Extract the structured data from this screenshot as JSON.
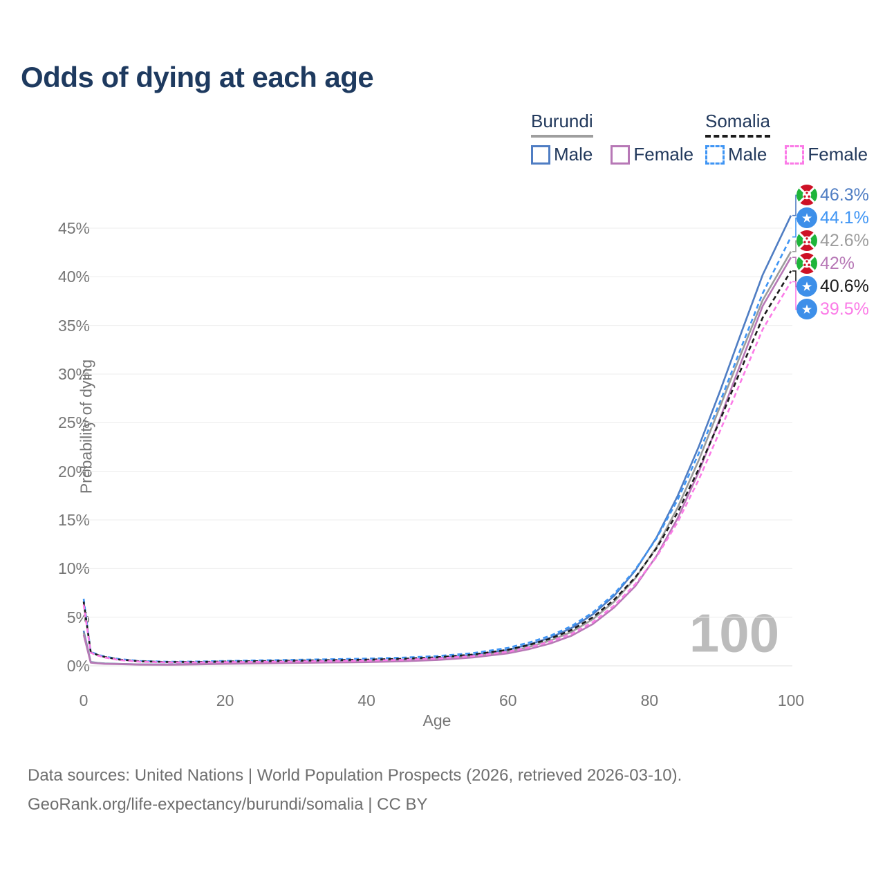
{
  "title": "Odds of dying at each age",
  "legend": {
    "groups": [
      {
        "label": "Burundi",
        "line_color": "#9e9e9e",
        "line_style": "solid",
        "items": [
          {
            "label": "Male",
            "color": "#4f7dc3",
            "style": "solid"
          },
          {
            "label": "Female",
            "color": "#b778b6",
            "style": "solid"
          }
        ]
      },
      {
        "label": "Somalia",
        "line_color": "#1c1c1c",
        "line_style": "dashed",
        "items": [
          {
            "label": "Male",
            "color": "#3f95f4",
            "style": "dashed"
          },
          {
            "label": "Female",
            "color": "#fb7be7",
            "style": "dashed"
          }
        ]
      }
    ]
  },
  "chart_data": {
    "type": "line",
    "title": "Odds of dying at each age",
    "xlabel": "Age",
    "ylabel": "Probability of dying",
    "xlim": [
      0,
      100
    ],
    "ylim": [
      0,
      48
    ],
    "x_ticks": [
      0,
      20,
      40,
      60,
      80,
      100
    ],
    "y_ticks": [
      "0%",
      "5%",
      "10%",
      "15%",
      "20%",
      "25%",
      "30%",
      "35%",
      "40%",
      "45%"
    ],
    "grid": "horizontal",
    "legend_position": "top-right",
    "watermark": "100",
    "x": [
      0,
      1,
      2,
      3,
      5,
      8,
      12,
      16,
      20,
      25,
      30,
      35,
      40,
      45,
      50,
      55,
      60,
      63,
      66,
      69,
      72,
      75,
      78,
      81,
      84,
      87,
      90,
      93,
      96,
      100
    ],
    "series": [
      {
        "name": "Burundi Male",
        "country": "Burundi",
        "sex": "Male",
        "flag": "burundi",
        "color": "#4f7dc3",
        "dash": "solid",
        "end_label": "46.3%",
        "values": [
          3.6,
          0.4,
          0.3,
          0.25,
          0.2,
          0.15,
          0.14,
          0.2,
          0.3,
          0.36,
          0.42,
          0.47,
          0.52,
          0.62,
          0.8,
          1.1,
          1.65,
          2.2,
          2.9,
          3.9,
          5.3,
          7.2,
          9.8,
          13.2,
          17.5,
          22.6,
          28.3,
          34.3,
          40.2,
          46.3
        ]
      },
      {
        "name": "Somalia Male",
        "country": "Somalia",
        "sex": "Male",
        "flag": "somalia",
        "color": "#3f95f4",
        "dash": "dashed",
        "end_label": "44.1%",
        "values": [
          6.9,
          1.45,
          1.15,
          0.95,
          0.7,
          0.5,
          0.42,
          0.44,
          0.5,
          0.56,
          0.62,
          0.68,
          0.74,
          0.84,
          1.0,
          1.3,
          1.85,
          2.4,
          3.1,
          4.1,
          5.5,
          7.4,
          9.9,
          13.1,
          17.1,
          21.9,
          27.2,
          32.8,
          38.3,
          44.1
        ]
      },
      {
        "name": "Burundi Both sexes",
        "country": "Burundi",
        "sex": "Both",
        "flag": "burundi",
        "color": "#9c9c9c",
        "dash": "solid",
        "end_label": "42.6%",
        "values": [
          3.4,
          0.37,
          0.28,
          0.23,
          0.19,
          0.14,
          0.13,
          0.18,
          0.25,
          0.31,
          0.36,
          0.4,
          0.45,
          0.54,
          0.7,
          0.97,
          1.45,
          1.95,
          2.6,
          3.5,
          4.8,
          6.6,
          9.0,
          12.2,
          16.3,
          21.2,
          26.7,
          32.2,
          37.6,
          42.6
        ]
      },
      {
        "name": "Burundi Female",
        "country": "Burundi",
        "sex": "Female",
        "flag": "burundi",
        "color": "#b778b6",
        "dash": "solid",
        "end_label": "42%",
        "values": [
          3.2,
          0.33,
          0.25,
          0.2,
          0.17,
          0.12,
          0.11,
          0.15,
          0.2,
          0.25,
          0.3,
          0.34,
          0.38,
          0.46,
          0.6,
          0.85,
          1.28,
          1.72,
          2.3,
          3.1,
          4.3,
          6.0,
          8.2,
          11.3,
          15.2,
          20.0,
          25.5,
          31.3,
          37.0,
          42.0
        ]
      },
      {
        "name": "Somalia Both sexes",
        "country": "Somalia",
        "sex": "Both",
        "flag": "somalia",
        "color": "#1b1b1b",
        "dash": "dashed",
        "end_label": "40.6%",
        "values": [
          6.6,
          1.4,
          1.1,
          0.9,
          0.65,
          0.46,
          0.39,
          0.4,
          0.44,
          0.48,
          0.53,
          0.58,
          0.63,
          0.72,
          0.88,
          1.15,
          1.65,
          2.15,
          2.8,
          3.7,
          5.0,
          6.8,
          9.1,
          12.1,
          15.8,
          20.3,
          25.3,
          30.6,
          35.8,
          40.6
        ]
      },
      {
        "name": "Somalia Female",
        "country": "Somalia",
        "sex": "Female",
        "flag": "somalia",
        "color": "#fb7be7",
        "dash": "dashed",
        "end_label": "39.5%",
        "values": [
          6.3,
          1.35,
          1.05,
          0.85,
          0.6,
          0.42,
          0.35,
          0.35,
          0.38,
          0.41,
          0.45,
          0.49,
          0.53,
          0.61,
          0.76,
          1.0,
          1.45,
          1.9,
          2.5,
          3.3,
          4.5,
          6.2,
          8.4,
          11.2,
          14.8,
          19.2,
          24.2,
          29.4,
          34.6,
          39.5
        ]
      }
    ]
  },
  "flag_colors": {
    "burundi_red": "#ce1126",
    "burundi_green": "#1eb53a",
    "somalia_blue": "#3d8fe9"
  },
  "footer": {
    "line1": "Data sources: United Nations | World Population Prospects (2026, retrieved 2026-03-10).",
    "line2": "GeoRank.org/life-expectancy/burundi/somalia | CC BY"
  }
}
